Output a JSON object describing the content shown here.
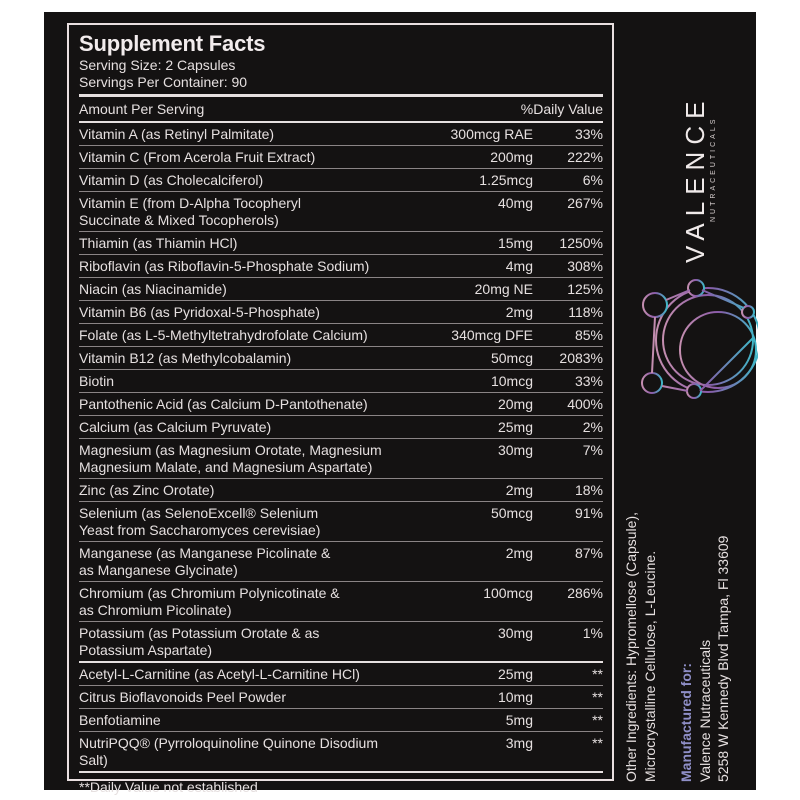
{
  "panel": {
    "title": "Supplement Facts",
    "serving_size": "Serving Size: 2 Capsules",
    "servings_per_container": "Servings Per Container: 90",
    "amount_header": "Amount Per Serving",
    "dv_header": "%Daily Value",
    "nutrients": [
      {
        "name": "Vitamin A (as Retinyl Palmitate)",
        "amount": "300mcg RAE",
        "dv": "33%"
      },
      {
        "name": "Vitamin C (From Acerola Fruit Extract)",
        "amount": "200mg",
        "dv": "222%"
      },
      {
        "name": "Vitamin D (as Cholecalciferol)",
        "amount": "1.25mcg",
        "dv": "6%"
      },
      {
        "name": "Vitamin E (from D-Alpha Tocopheryl",
        "name2": "Succinate & Mixed Tocopherols)",
        "amount": "40mg",
        "dv": "267%"
      },
      {
        "name": "Thiamin (as Thiamin HCl)",
        "amount": "15mg",
        "dv": "1250%"
      },
      {
        "name": "Riboflavin (as Riboflavin-5-Phosphate Sodium)",
        "amount": "4mg",
        "dv": "308%"
      },
      {
        "name": "Niacin (as Niacinamide)",
        "amount": "20mg NE",
        "dv": "125%"
      },
      {
        "name": "Vitamin B6 (as Pyridoxal-5-Phosphate)",
        "amount": "2mg",
        "dv": "118%"
      },
      {
        "name": "Folate (as L-5-Methyltetrahydrofolate Calcium)",
        "amount": "340mcg DFE",
        "dv": "85%"
      },
      {
        "name": "Vitamin B12 (as Methylcobalamin)",
        "amount": "50mcg",
        "dv": "2083%"
      },
      {
        "name": "Biotin",
        "amount": "10mcg",
        "dv": "33%"
      },
      {
        "name": "Pantothenic Acid (as Calcium D-Pantothenate)",
        "amount": "20mg",
        "dv": "400%"
      },
      {
        "name": "Calcium (as Calcium Pyruvate)",
        "amount": "25mg",
        "dv": "2%"
      },
      {
        "name": "Magnesium (as Magnesium Orotate, Magnesium",
        "name2": "Magnesium Malate, and Magnesium Aspartate)",
        "amount": "30mg",
        "dv": "7%"
      },
      {
        "name": "Zinc (as Zinc Orotate)",
        "amount": "2mg",
        "dv": "18%"
      },
      {
        "name": "Selenium (as SelenoExcell® Selenium",
        "name2": "Yeast from Saccharomyces cerevisiae)",
        "amount": "50mcg",
        "dv": "91%"
      },
      {
        "name": "Manganese (as Manganese Picolinate &",
        "name2": "as Manganese Glycinate)",
        "amount": "2mg",
        "dv": "87%"
      },
      {
        "name": "Chromium (as Chromium Polynicotinate &",
        "name2": "as Chromium Picolinate)",
        "amount": "100mcg",
        "dv": "286%"
      },
      {
        "name": "Potassium (as Potassium Orotate & as",
        "name2": "Potassium Aspartate)",
        "amount": "30mg",
        "dv": "1%"
      }
    ],
    "others": [
      {
        "name": "Acetyl-L-Carnitine (as Acetyl-L-Carnitine HCl)",
        "amount": "25mg",
        "dv": "**"
      },
      {
        "name": "Citrus Bioflavonoids Peel Powder",
        "amount": "10mg",
        "dv": "**"
      },
      {
        "name": "Benfotiamine",
        "amount": "5mg",
        "dv": "**"
      },
      {
        "name": "NutriPQQ® (Pyrroloquinoline Quinone Disodium Salt)",
        "amount": "3mg",
        "dv": "**"
      }
    ],
    "footnote": "**Daily Value not established"
  },
  "brand": {
    "name": "VALENCE",
    "tagline": "NUTRACEUTICALS"
  },
  "info": {
    "other_ingredients_1": "Other Ingredients: Hypromellose (Capsule),",
    "other_ingredients_2": "Microcrystalline Cellulose, L-Leucine.",
    "manufactured_for": "Manufactured for:",
    "company": "Valence Nutraceuticals",
    "address": "5258 W Kennedy Blvd Tampa, Fl 33609"
  },
  "colors": {
    "background": "#141212",
    "text": "#e6e0e0",
    "accent": "#8f8fc7",
    "logo_start": "#c58fb0",
    "logo_mid": "#8a5aa8",
    "logo_end": "#3fb8c8"
  }
}
